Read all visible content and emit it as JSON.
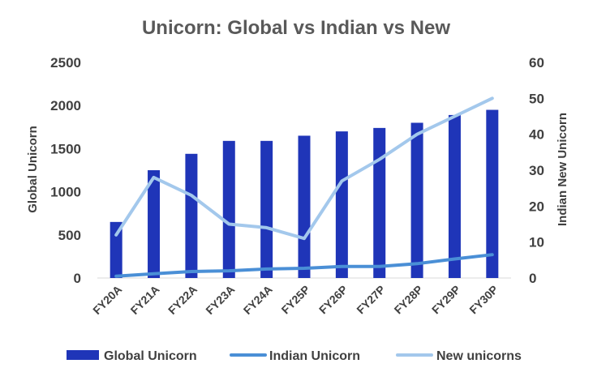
{
  "chart_data": {
    "type": "bar",
    "title": "Unicorn: Global vs Indian vs New",
    "categories": [
      "FY20A",
      "FY21A",
      "FY22A",
      "FY23A",
      "FY24A",
      "FY25P",
      "FY26P",
      "FY27P",
      "FY28P",
      "FY29P",
      "FY30P"
    ],
    "y_left": {
      "label": "Global Unicorn",
      "range": [
        0,
        2500
      ],
      "ticks": [
        "0",
        "500",
        "1000",
        "1500",
        "2000",
        "2500"
      ]
    },
    "y_right": {
      "label": "Indian New Unicorn",
      "range": [
        0,
        60
      ],
      "ticks": [
        "0",
        "10",
        "20",
        "30",
        "40",
        "50",
        "60"
      ]
    },
    "series": [
      {
        "name": "Global Unicorn",
        "type": "bar",
        "axis": "left",
        "color": "#1f35b8",
        "values": [
          650,
          1250,
          1440,
          1590,
          1590,
          1650,
          1700,
          1740,
          1800,
          1890,
          1950
        ]
      },
      {
        "name": "Indian Unicorn",
        "type": "line",
        "axis": "right",
        "color": "#4a8fd6",
        "values": [
          0.5,
          1.2,
          1.8,
          2.0,
          2.5,
          2.7,
          3.2,
          3.2,
          4.0,
          5.3,
          6.5
        ]
      },
      {
        "name": "New unicorns",
        "type": "line",
        "axis": "right",
        "color": "#a3c8ec",
        "values": [
          12,
          28,
          23,
          15,
          14,
          11,
          27,
          33,
          40,
          45,
          50
        ]
      }
    ],
    "legend": "bottom",
    "grid": false
  }
}
